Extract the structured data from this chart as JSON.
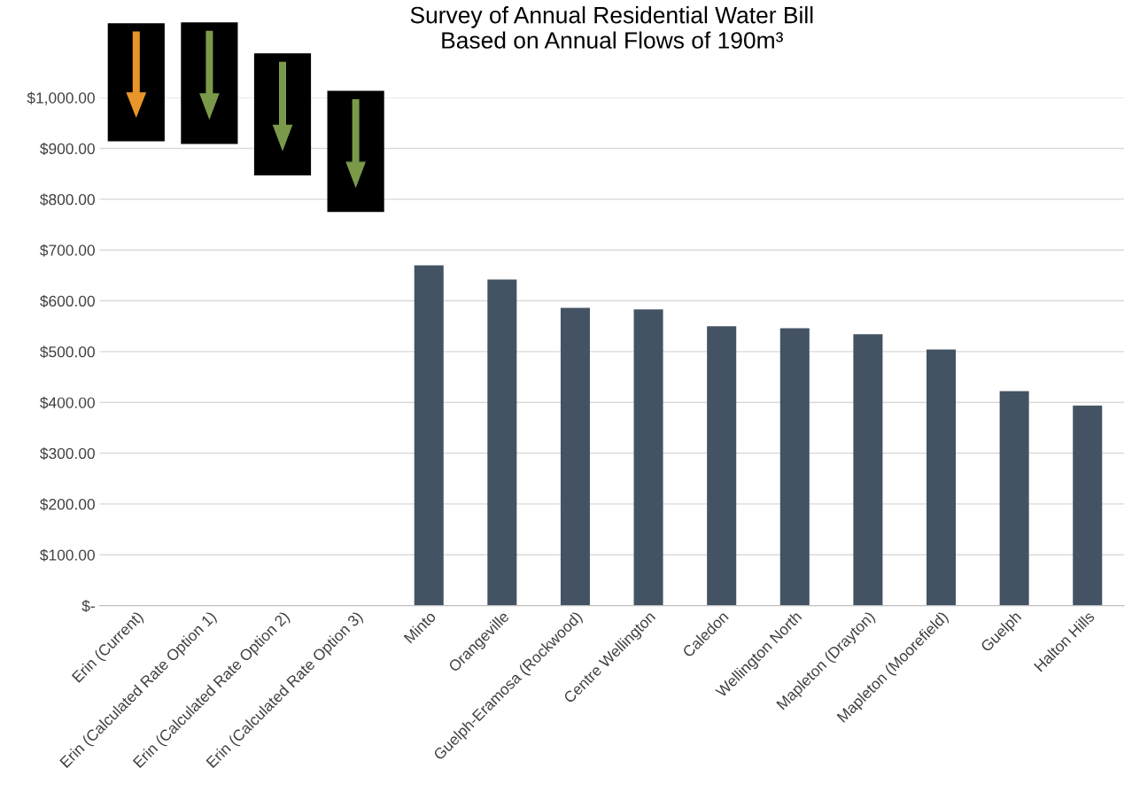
{
  "chart_data": {
    "type": "bar",
    "title": "Survey of Annual Residential Water Bill\nBased on Annual Flows of 190m³",
    "categories": [
      "Erin (Current)",
      "Erin (Calculated Rate Option 1)",
      "Erin (Calculated Rate Option 2)",
      "Erin (Calculated Rate Option 3)",
      "Minto",
      "Orangeville",
      "Guelph-Eramosa (Rockwood)",
      "Centre Wellington",
      "Caledon",
      "Wellington North",
      "Mapleton (Drayton)",
      "Mapleton (Moorefield)",
      "Guelph",
      "Halton Hills"
    ],
    "values": [
      null,
      null,
      null,
      null,
      670,
      642,
      586,
      583,
      550,
      546,
      534,
      504,
      422,
      394
    ],
    "color": "#435363",
    "ylim": [
      0,
      1000
    ],
    "yticks": [
      {
        "value": 0,
        "label": "$-"
      },
      {
        "value": 100,
        "label": "$100.00"
      },
      {
        "value": 200,
        "label": "$200.00"
      },
      {
        "value": 300,
        "label": "$300.00"
      },
      {
        "value": 400,
        "label": "$400.00"
      },
      {
        "value": 500,
        "label": "$500.00"
      },
      {
        "value": 600,
        "label": "$600.00"
      },
      {
        "value": 700,
        "label": "$700.00"
      },
      {
        "value": 800,
        "label": "$800.00"
      },
      {
        "value": 900,
        "label": "$900.00"
      },
      {
        "value": 1000,
        "label": "$1,000.00"
      }
    ],
    "grid": "y"
  }
}
